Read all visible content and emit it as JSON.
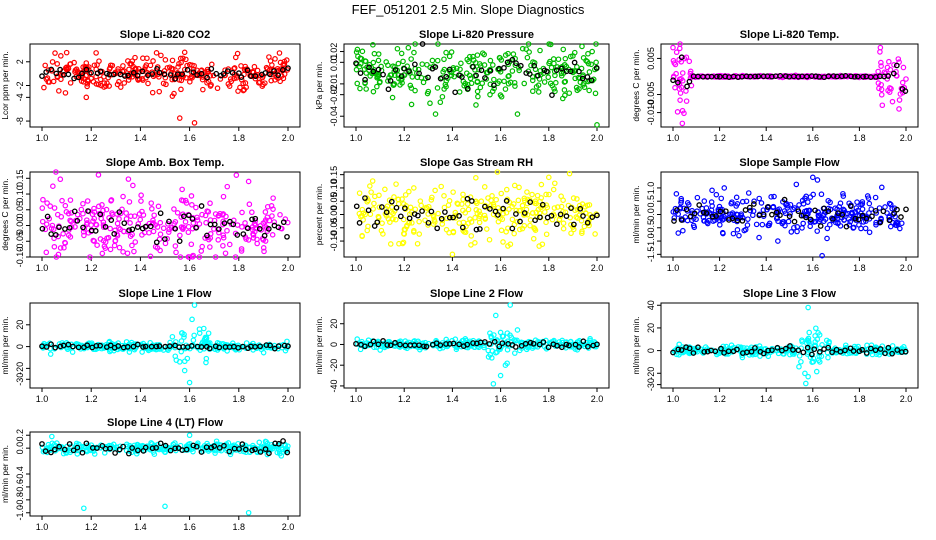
{
  "figure": {
    "title": "FEF_051201  2.5 Min. Slope Diagnostics"
  },
  "chart_data": [
    {
      "type": "scatter",
      "title": "Slope Li-820 CO2",
      "ylabel": "Lcor ppm per min.",
      "xlim": [
        1.0,
        2.0
      ],
      "ylim": [
        -9,
        5
      ],
      "x_ticks": [
        "1.0",
        "1.2",
        "1.4",
        "1.6",
        "1.8",
        "2.0"
      ],
      "y_ticks": [
        {
          "v": 2,
          "label": "2"
        },
        {
          "v": -2,
          "label": "-2"
        },
        {
          "v": -4,
          "label": "-4"
        },
        {
          "v": -8,
          "label": "-8"
        }
      ],
      "color": "#ff0000",
      "spread": 1.3,
      "black_spread": 0.45,
      "outliers": [
        [
          1.22,
          3.5
        ],
        [
          1.58,
          3.6
        ],
        [
          1.56,
          -7.5
        ],
        [
          1.62,
          -8.3
        ],
        [
          1.18,
          -4.0
        ],
        [
          1.45,
          -3.2
        ],
        [
          1.53,
          -3.8
        ],
        [
          1.83,
          -2.3
        ]
      ]
    },
    {
      "type": "scatter",
      "title": "Slope Li-820 Pressure",
      "ylabel": "kPa per min.",
      "xlim": [
        1.0,
        2.0
      ],
      "ylim": [
        -0.05,
        0.027
      ],
      "x_ticks": [
        "1.0",
        "1.2",
        "1.4",
        "1.6",
        "1.8",
        "2.0"
      ],
      "y_ticks": [
        {
          "v": 0.02,
          "label": "0.02"
        },
        {
          "v": 0.01,
          "label": "0.01"
        },
        {
          "v": -0.01,
          "label": "-0.01"
        },
        {
          "v": -0.02,
          "label": "-0.02"
        },
        {
          "v": -0.04,
          "label": "-0.04"
        }
      ],
      "color": "#00bb00",
      "spread": 0.011,
      "black_spread": 0.008,
      "outliers": [
        [
          1.33,
          -0.038
        ],
        [
          1.67,
          -0.038
        ],
        [
          2.0,
          -0.048
        ],
        [
          1.86,
          0.022
        ],
        [
          1.98,
          0.02
        ]
      ]
    },
    {
      "type": "scatter",
      "title": "Slope Li-820 Temp.",
      "ylabel": "degrees C per min.",
      "xlim": [
        1.0,
        2.0
      ],
      "ylim": [
        -0.014,
        0.009
      ],
      "x_ticks": [
        "1.0",
        "1.2",
        "1.4",
        "1.6",
        "1.8",
        "2.0"
      ],
      "y_ticks": [
        {
          "v": 0.005,
          "label": "0.005"
        },
        {
          "v": -0.005,
          "label": "-0.005"
        },
        {
          "v": -0.01,
          "label": "-0.010"
        }
      ],
      "color": "#ff00ff",
      "spread": 0.0045,
      "black_spread": 0.003,
      "outliers": [
        [
          1.0,
          0.008
        ],
        [
          1.04,
          -0.013
        ],
        [
          1.89,
          0.008
        ],
        [
          1.97,
          -0.009
        ]
      ]
    },
    {
      "type": "scatter",
      "title": "Slope Amb. Box Temp.",
      "ylabel": "degrees C per min.",
      "xlim": [
        1.0,
        2.0
      ],
      "ylim": [
        -0.1,
        0.17
      ],
      "x_ticks": [
        "1.0",
        "1.2",
        "1.4",
        "1.6",
        "1.8",
        "2.0"
      ],
      "y_ticks": [
        {
          "v": 0.15,
          "label": "0.15"
        },
        {
          "v": 0.1,
          "label": "0.10"
        },
        {
          "v": 0.05,
          "label": "0.05"
        },
        {
          "v": 0.0,
          "label": "0.00"
        },
        {
          "v": -0.05,
          "label": "-0.05"
        },
        {
          "v": -0.1,
          "label": "-0.10"
        }
      ],
      "color": "#ff00ff",
      "spread": 0.055,
      "black_spread": 0.03,
      "outliers": [
        [
          1.6,
          -0.11
        ],
        [
          1.79,
          0.16
        ],
        [
          1.84,
          0.14
        ]
      ]
    },
    {
      "type": "scatter",
      "title": "Slope Gas Stream RH",
      "ylabel": "percent per min.",
      "xlim": [
        1.0,
        2.0
      ],
      "ylim": [
        -0.16,
        0.16
      ],
      "x_ticks": [
        "1.0",
        "1.2",
        "1.4",
        "1.6",
        "1.8",
        "2.0"
      ],
      "y_ticks": [
        {
          "v": 0.15,
          "label": "0.15"
        },
        {
          "v": 0.1,
          "label": "0.10"
        },
        {
          "v": 0.05,
          "label": "0.05"
        },
        {
          "v": 0.0,
          "label": "0.00"
        },
        {
          "v": -0.05,
          "label": "-0.05"
        },
        {
          "v": -0.1,
          "label": "-0.10"
        }
      ],
      "color": "#ffff00",
      "spread": 0.05,
      "black_spread": 0.03,
      "outliers": [
        [
          1.4,
          -0.15
        ],
        [
          1.8,
          0.14
        ]
      ]
    },
    {
      "type": "scatter",
      "title": "Slope Sample Flow",
      "ylabel": "ml/min per min.",
      "xlim": [
        1.0,
        2.0
      ],
      "ylim": [
        -1.6,
        1.6
      ],
      "x_ticks": [
        "1.0",
        "1.2",
        "1.4",
        "1.6",
        "1.8",
        "2.0"
      ],
      "y_ticks": [
        {
          "v": 1.0,
          "label": "1.0"
        },
        {
          "v": 0.5,
          "label": "0.5"
        },
        {
          "v": 0.0,
          "label": "0.0"
        },
        {
          "v": -0.5,
          "label": "-0.5"
        },
        {
          "v": -1.0,
          "label": "-1.0"
        },
        {
          "v": -1.5,
          "label": "-1.5"
        }
      ],
      "color": "#0000ff",
      "spread": 0.35,
      "black_spread": 0.2,
      "outliers": [
        [
          1.6,
          1.4
        ],
        [
          1.62,
          1.3
        ],
        [
          1.64,
          -1.55
        ],
        [
          1.22,
          1.0
        ],
        [
          1.45,
          -1.0
        ]
      ]
    },
    {
      "type": "scatter",
      "title": "Slope Line 1 Flow",
      "ylabel": "ml/min per min.",
      "xlim": [
        1.0,
        2.0
      ],
      "ylim": [
        -38,
        40
      ],
      "x_ticks": [
        "1.0",
        "1.2",
        "1.4",
        "1.6",
        "1.8",
        "2.0"
      ],
      "y_ticks": [
        {
          "v": 20,
          "label": "20"
        },
        {
          "v": 0,
          "label": "0"
        },
        {
          "v": -20,
          "label": "-20"
        },
        {
          "v": -30,
          "label": "-30"
        }
      ],
      "color": "#00ffff",
      "spread": 2.0,
      "black_spread": 0.8,
      "outliers": [
        [
          1.62,
          38
        ],
        [
          1.61,
          25
        ],
        [
          1.6,
          -33
        ],
        [
          1.56,
          -14
        ],
        [
          1.58,
          -22
        ],
        [
          1.64,
          16
        ],
        [
          1.53,
          9
        ]
      ]
    },
    {
      "type": "scatter",
      "title": "Slope Line 2 Flow",
      "ylabel": "ml/min per min.",
      "xlim": [
        1.0,
        2.0
      ],
      "ylim": [
        -42,
        40
      ],
      "x_ticks": [
        "1.0",
        "1.2",
        "1.4",
        "1.6",
        "1.8",
        "2.0"
      ],
      "y_ticks": [
        {
          "v": 20,
          "label": "20"
        },
        {
          "v": 0,
          "label": "0"
        },
        {
          "v": -20,
          "label": "-20"
        },
        {
          "v": -40,
          "label": "-40"
        }
      ],
      "color": "#00ffff",
      "spread": 2.0,
      "black_spread": 1.5,
      "outliers": [
        [
          1.58,
          28
        ],
        [
          1.64,
          38
        ],
        [
          1.57,
          -38
        ],
        [
          1.6,
          -30
        ],
        [
          1.55,
          -12
        ],
        [
          1.62,
          -20
        ],
        [
          1.67,
          14
        ]
      ]
    },
    {
      "type": "scatter",
      "title": "Slope Line 3 Flow",
      "ylabel": "ml/min per min.",
      "xlim": [
        1.0,
        2.0
      ],
      "ylim": [
        -33,
        42
      ],
      "x_ticks": [
        "1.0",
        "1.2",
        "1.4",
        "1.6",
        "1.8",
        "2.0"
      ],
      "y_ticks": [
        {
          "v": 40,
          "label": "40"
        },
        {
          "v": 20,
          "label": "20"
        },
        {
          "v": 0,
          "label": "0"
        },
        {
          "v": -20,
          "label": "-20"
        },
        {
          "v": -30,
          "label": "-30"
        }
      ],
      "color": "#00ffff",
      "spread": 2.0,
      "black_spread": 1.5,
      "outliers": [
        [
          1.58,
          38
        ],
        [
          1.57,
          -29
        ],
        [
          1.58,
          -23
        ],
        [
          1.61,
          13
        ],
        [
          1.66,
          9
        ],
        [
          1.63,
          -10
        ]
      ]
    },
    {
      "type": "scatter",
      "title": "Slope Line 4 (LT) Flow",
      "ylabel": "ml/min per min.",
      "xlim": [
        1.0,
        2.0
      ],
      "ylim": [
        -1.05,
        0.25
      ],
      "x_ticks": [
        "1.0",
        "1.2",
        "1.4",
        "1.6",
        "1.8",
        "2.0"
      ],
      "y_ticks": [
        {
          "v": 0.2,
          "label": "0.2"
        },
        {
          "v": 0.0,
          "label": "0.0"
        },
        {
          "v": -0.4,
          "label": "-0.4"
        },
        {
          "v": -0.6,
          "label": "-0.6"
        },
        {
          "v": -0.8,
          "label": "-0.8"
        },
        {
          "v": -1.0,
          "label": "-1.0"
        }
      ],
      "color": "#00ffff",
      "spread": 0.04,
      "black_spread": 0.05,
      "outliers": [
        [
          1.17,
          -0.93
        ],
        [
          1.5,
          -0.9
        ],
        [
          1.84,
          -1.0
        ],
        [
          1.6,
          0.2
        ],
        [
          1.04,
          0.18
        ]
      ]
    }
  ]
}
